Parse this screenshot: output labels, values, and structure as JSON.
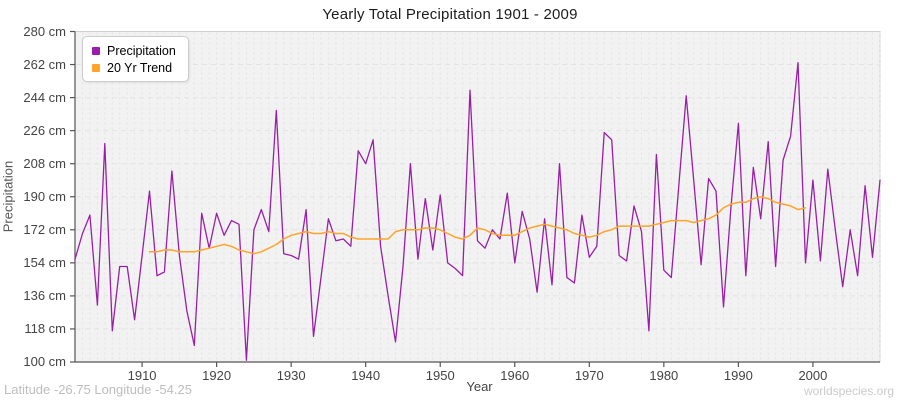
{
  "title": "Yearly Total Precipitation 1901 - 2009",
  "y_axis": {
    "label": "Precipitation",
    "unit": "cm",
    "ticks": [
      100,
      118,
      136,
      154,
      172,
      190,
      208,
      226,
      244,
      262,
      280
    ]
  },
  "x_axis": {
    "label": "Year",
    "ticks": [
      1910,
      1920,
      1930,
      1940,
      1950,
      1960,
      1970,
      1980,
      1990,
      2000
    ]
  },
  "legend": [
    {
      "label": "Precipitation",
      "color": "#9A1FA8"
    },
    {
      "label": "20 Yr Trend",
      "color": "#FFA428"
    }
  ],
  "footer": {
    "left": "Latitude -26.75 Longitude -54.25",
    "right": "worldspecies.org"
  },
  "colors": {
    "plot_bg": "#F2F2F2",
    "grid": "#E3E3E3",
    "plot_border": "#CFCFCF",
    "spine": "#555555",
    "precipitation": "#9A1FA8",
    "trend": "#FFA428"
  },
  "chart_data": {
    "type": "line",
    "title": "Yearly Total Precipitation 1901 - 2009",
    "xlabel": "Year",
    "ylabel": "Precipitation",
    "x_range": [
      1901,
      2009
    ],
    "ylim": [
      100,
      280
    ],
    "y_tick_step": 18,
    "grid": true,
    "legend_position": "top-left",
    "series": [
      {
        "name": "Precipitation",
        "color": "#9A1FA8",
        "start_year": 1901,
        "values": [
          156,
          170,
          180,
          131,
          219,
          117,
          152,
          152,
          123,
          158,
          193,
          147,
          149,
          204,
          158,
          128,
          109,
          181,
          162,
          181,
          169,
          177,
          175,
          101,
          172,
          183,
          171,
          237,
          159,
          158,
          156,
          183,
          114,
          146,
          178,
          166,
          167,
          163,
          215,
          208,
          221,
          163,
          136,
          111,
          152,
          208,
          156,
          189,
          161,
          191,
          154,
          151,
          147,
          248,
          166,
          162,
          172,
          167,
          192,
          154,
          182,
          167,
          138,
          178,
          142,
          208,
          146,
          143,
          180,
          157,
          163,
          225,
          221,
          158,
          155,
          185,
          171,
          117,
          213,
          150,
          146,
          196,
          245,
          199,
          153,
          200,
          193,
          130,
          184,
          230,
          147,
          206,
          178,
          220,
          152,
          210,
          223,
          263,
          154,
          199,
          155,
          205,
          172,
          141,
          172,
          147,
          196,
          157,
          199
        ]
      },
      {
        "name": "20 Yr Trend",
        "color": "#FFA428",
        "start_year": 1911,
        "values": [
          160,
          160,
          161,
          161,
          160,
          160,
          160,
          161,
          162,
          163,
          164,
          163,
          161,
          160,
          159,
          160,
          162,
          164,
          167,
          169,
          170,
          171,
          170,
          170,
          171,
          170,
          170,
          168,
          167,
          167,
          167,
          167,
          167,
          171,
          172,
          172,
          172,
          173,
          173,
          172,
          170,
          168,
          167,
          169,
          173,
          172,
          170,
          169,
          169,
          169,
          171,
          173,
          174,
          175,
          174,
          173,
          172,
          170,
          169,
          168,
          169,
          171,
          172,
          174,
          174,
          174,
          174,
          174,
          175,
          176,
          177,
          177,
          177,
          176,
          177,
          178,
          180,
          184,
          186,
          187,
          187,
          189,
          190,
          189,
          187,
          186,
          185,
          183,
          184
        ]
      }
    ]
  }
}
